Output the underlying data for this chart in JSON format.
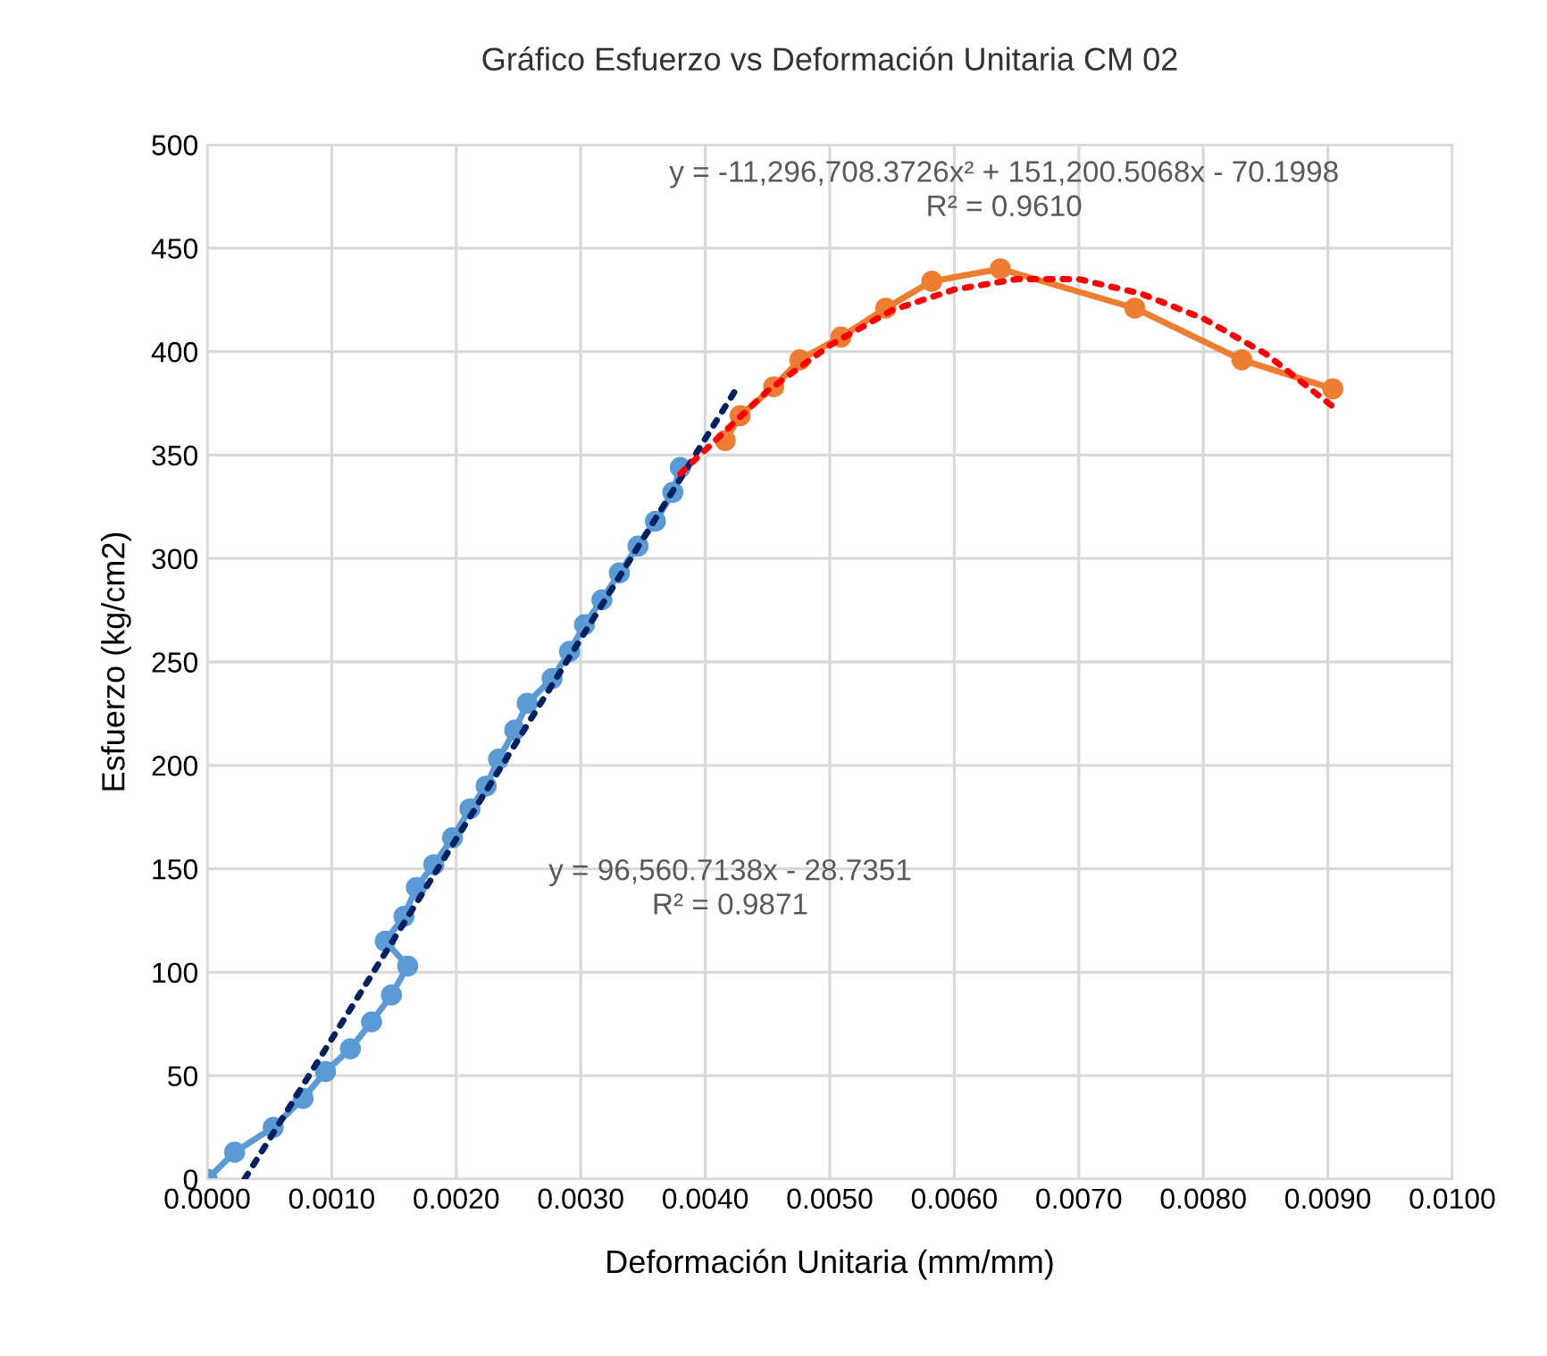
{
  "chart_data": {
    "type": "line",
    "title": "Gráfico Esfuerzo vs Deformación Unitaria CM 02",
    "xlabel": "Deformación Unitaria (mm/mm)",
    "ylabel": "Esfuerzo (kg/cm2)",
    "xlim": [
      0,
      0.01
    ],
    "xticks": [
      {
        "value": 0,
        "label": "0.0000"
      },
      {
        "value": 0.001,
        "label": "0.0010"
      },
      {
        "value": 0.002,
        "label": "0.0020"
      },
      {
        "value": 0.003,
        "label": "0.0030"
      },
      {
        "value": 0.004,
        "label": "0.0040"
      },
      {
        "value": 0.005,
        "label": "0.0050"
      },
      {
        "value": 0.006,
        "label": "0.0060"
      },
      {
        "value": 0.007,
        "label": "0.0070"
      },
      {
        "value": 0.008,
        "label": "0.0080"
      },
      {
        "value": 0.009,
        "label": "0.0090"
      },
      {
        "value": 0.01,
        "label": "0.0100"
      }
    ],
    "ylim": [
      0,
      500
    ],
    "yticks": [
      0,
      50,
      100,
      150,
      200,
      250,
      300,
      350,
      400,
      450,
      500
    ],
    "grid": true,
    "legend": false,
    "series": [
      {
        "color": "#5b9bd5",
        "marker": "circle",
        "line_style": "solid",
        "x": [
          0,
          0.00022,
          0.00053,
          0.00077,
          0.00095,
          0.00115,
          0.00132,
          0.00148,
          0.00161,
          0.00143,
          0.00158,
          0.00168,
          0.00182,
          0.00197,
          0.00211,
          0.00224,
          0.00234,
          0.00247,
          0.00257,
          0.00277,
          0.00291,
          0.00303,
          0.00317,
          0.00331,
          0.00346,
          0.0036,
          0.00374,
          0.0038
        ],
        "values": [
          0,
          13,
          25,
          39,
          52,
          63,
          76,
          89,
          103,
          115,
          127,
          141,
          152,
          165,
          179,
          190,
          203,
          217,
          230,
          242,
          255,
          268,
          280,
          293,
          306,
          318,
          332,
          344
        ]
      },
      {
        "color": "#ed7d31",
        "marker": "circle",
        "line_style": "solid",
        "x": [
          0.00416,
          0.00428,
          0.00455,
          0.00476,
          0.00509,
          0.00545,
          0.00582,
          0.00637,
          0.00745,
          0.00831,
          0.00904
        ],
        "values": [
          357,
          369,
          383,
          396,
          407,
          421,
          434,
          440,
          421,
          396,
          382
        ]
      },
      {
        "color": "#002060",
        "marker": "none",
        "line_style": "dotted",
        "x": [
          0.0003,
          0.00426
        ],
        "values": [
          0,
          383
        ]
      },
      {
        "color": "#ff0000",
        "marker": "none",
        "line_style": "dotted",
        "x": [
          0.0038,
          0.0045,
          0.005,
          0.0055,
          0.006,
          0.0065,
          0.007,
          0.0075,
          0.008,
          0.0085,
          0.00905
        ],
        "values": [
          341,
          381,
          403,
          420,
          430,
          435,
          435,
          428,
          416,
          399,
          373
        ]
      }
    ],
    "annotations": [
      "y = -11,296,708.3726x² + 151,200.5068x - 70.1998\nR² = 0.9610",
      "y = 96,560.7138x - 28.7351\nR² = 0.9871"
    ]
  }
}
